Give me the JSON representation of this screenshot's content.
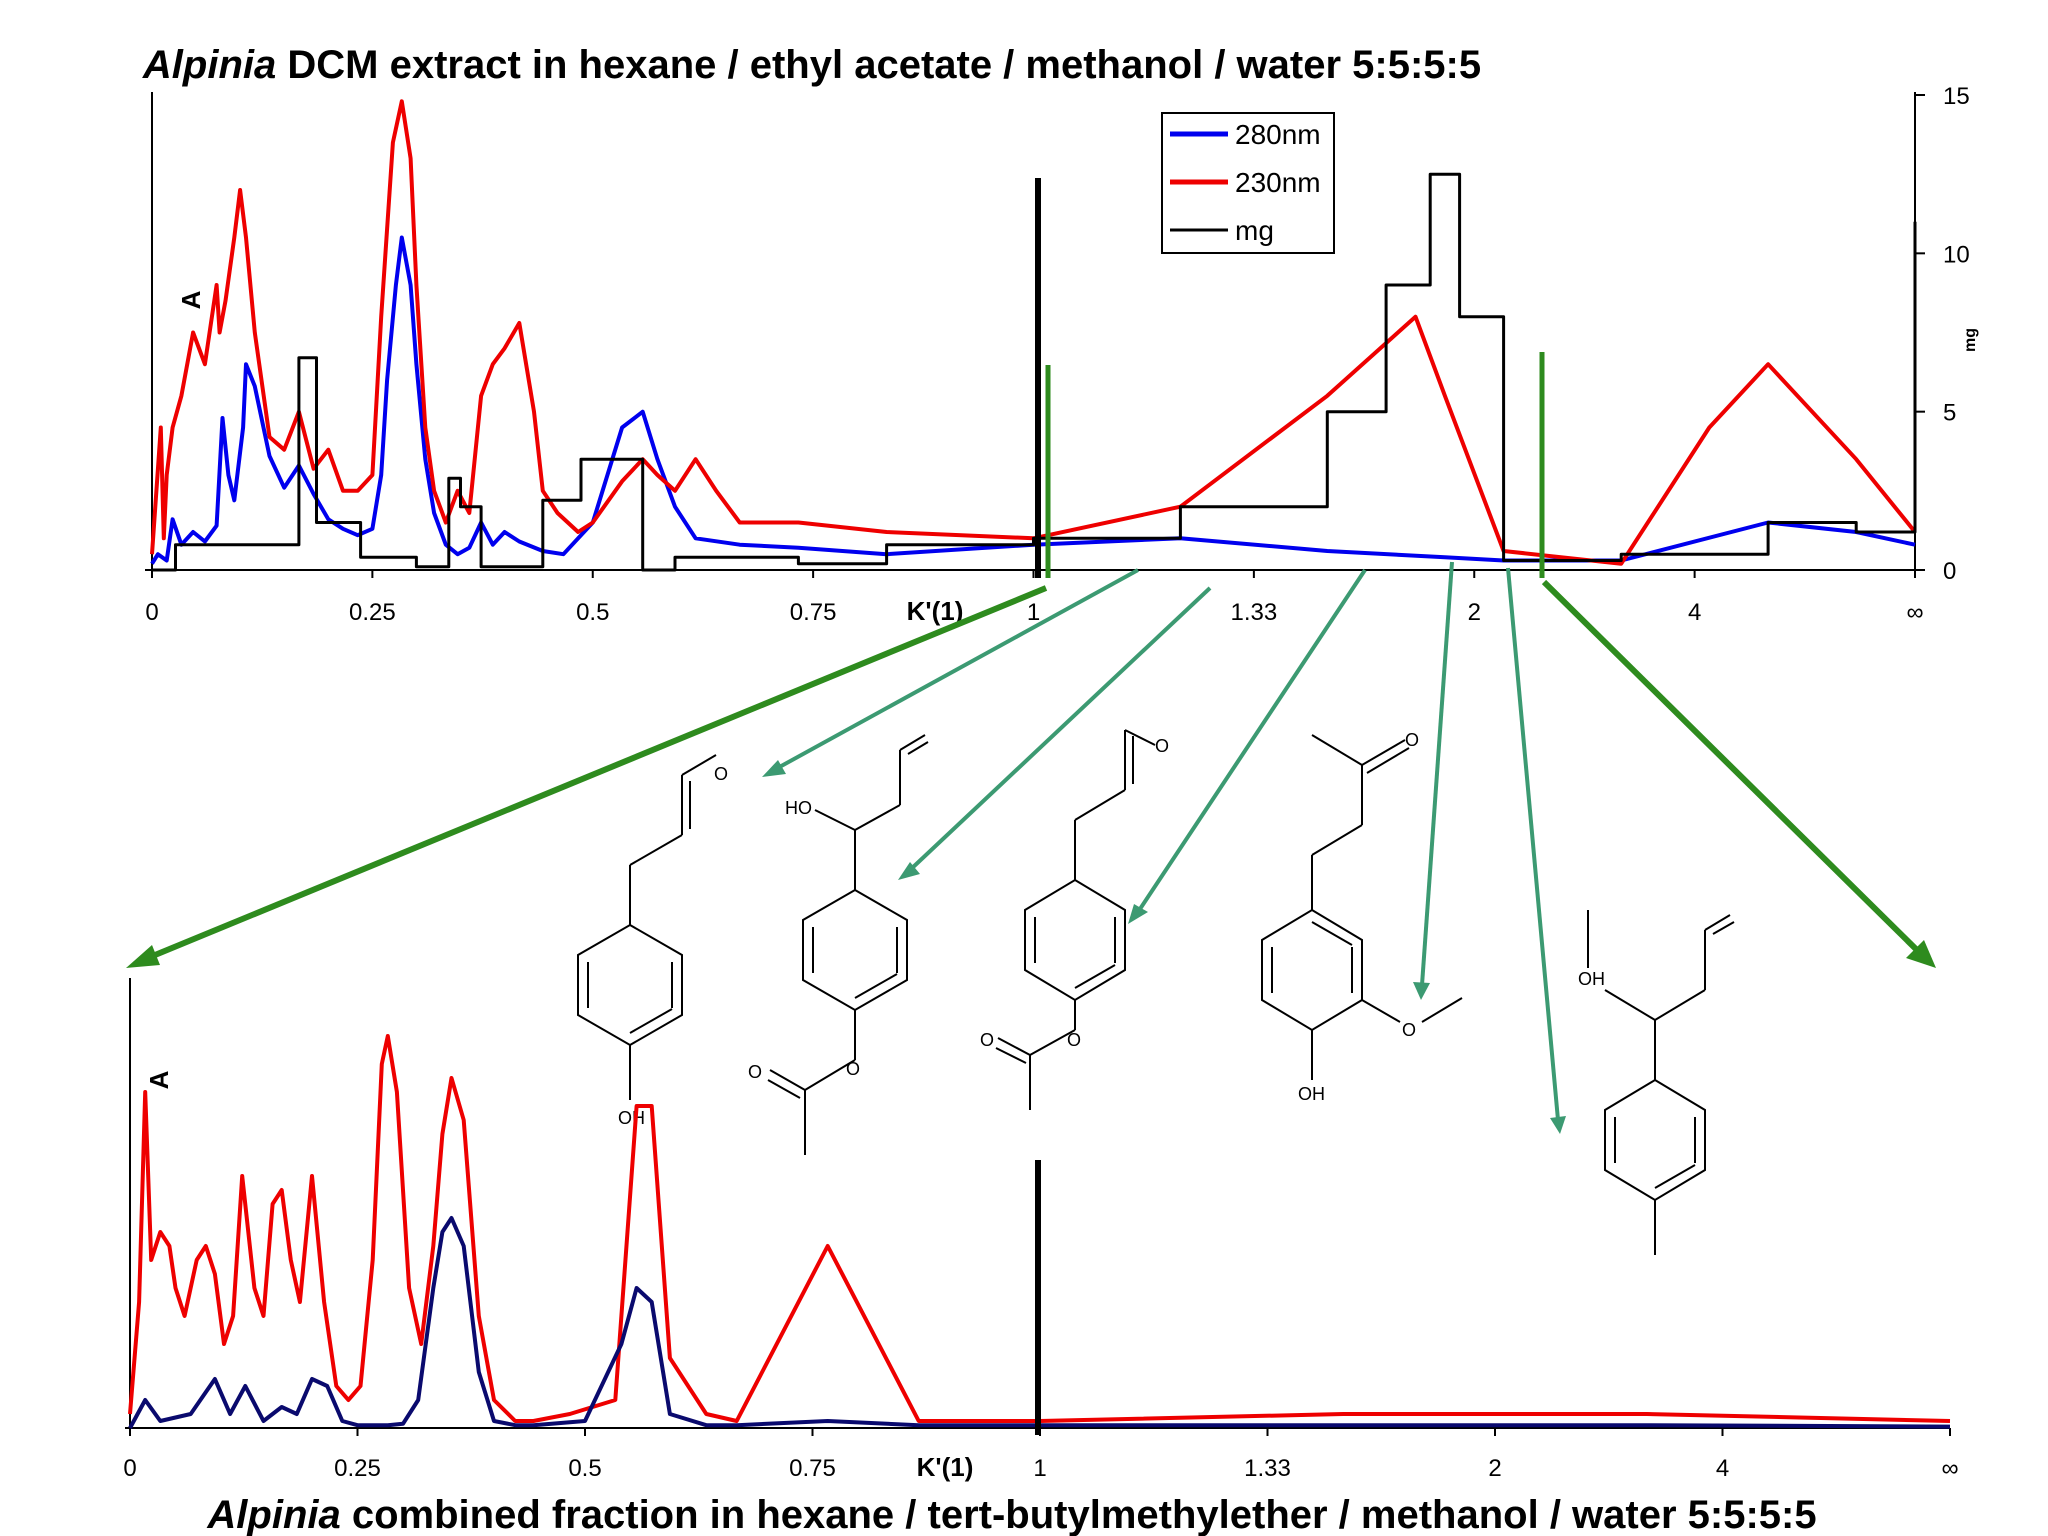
{
  "chart_data": [
    {
      "type": "line",
      "title_italic": "Alpinia",
      "title_rest": " DCM extract in hexane / ethyl acetate / methanol / water 5:5:5:5",
      "ylabel": "A",
      "y2label": "mg",
      "xlabel": "K'(1)",
      "x_ticks": [
        "0",
        "0.25",
        "0.5",
        "0.75",
        "1",
        "1.33",
        "2",
        "4",
        "∞"
      ],
      "y2_ticks": [
        0,
        5,
        10,
        15
      ],
      "y2lim": [
        0,
        15
      ],
      "grid": false,
      "legend": {
        "placement": "top-center",
        "entries": [
          "280nm",
          "230nm",
          "mg"
        ]
      },
      "series": [
        {
          "name": "280nm",
          "color": "#0000ee",
          "x": [
            0,
            0.02,
            0.05,
            0.07,
            0.1,
            0.14,
            0.18,
            0.22,
            0.24,
            0.26,
            0.28,
            0.31,
            0.32,
            0.35,
            0.4,
            0.45,
            0.5,
            0.55,
            0.6,
            0.65,
            0.7,
            0.75,
            0.78,
            0.8,
            0.83,
            0.85,
            0.88,
            0.9,
            0.93,
            0.96,
            1.0,
            1.04,
            1.08,
            1.12,
            1.16,
            1.2,
            1.25,
            1.33,
            1.4,
            1.5,
            1.6,
            1.67,
            1.72,
            1.78,
            1.85,
            2.0,
            2.2,
            2.5,
            3.0,
            3.5,
            4.0,
            4.4,
            4.6,
            5.0,
            5.5,
            5.8,
            6.0
          ],
          "y": [
            0.2,
            0.5,
            0.3,
            1.6,
            0.8,
            1.2,
            0.9,
            1.4,
            4.8,
            3.0,
            2.2,
            4.5,
            6.5,
            5.8,
            3.6,
            2.6,
            3.3,
            2.4,
            1.6,
            1.3,
            1.1,
            1.3,
            3.0,
            6.0,
            9.0,
            10.5,
            9.0,
            6.5,
            3.5,
            1.8,
            0.8,
            0.5,
            0.7,
            1.5,
            0.8,
            1.2,
            0.9,
            0.6,
            0.5,
            1.5,
            4.5,
            5.0,
            3.5,
            2.0,
            1.0,
            0.8,
            0.7,
            0.5,
            0.8,
            1.0,
            0.6,
            0.4,
            0.3,
            0.3,
            1.5,
            1.2,
            0.8
          ]
        },
        {
          "name": "230nm",
          "color": "#ee0000",
          "x": [
            0,
            0.03,
            0.04,
            0.05,
            0.07,
            0.1,
            0.14,
            0.18,
            0.22,
            0.23,
            0.25,
            0.28,
            0.3,
            0.32,
            0.35,
            0.4,
            0.45,
            0.5,
            0.55,
            0.6,
            0.65,
            0.7,
            0.75,
            0.78,
            0.82,
            0.85,
            0.88,
            0.9,
            0.93,
            0.96,
            1.0,
            1.04,
            1.08,
            1.12,
            1.16,
            1.2,
            1.25,
            1.3,
            1.33,
            1.38,
            1.45,
            1.5,
            1.6,
            1.67,
            1.72,
            1.78,
            1.85,
            1.92,
            2.0,
            2.2,
            2.5,
            3.0,
            3.5,
            4.0,
            4.3,
            4.4,
            4.6,
            5.0,
            5.3,
            5.5,
            5.8,
            6.0
          ],
          "y": [
            0.5,
            4.5,
            1.0,
            3.0,
            4.5,
            5.5,
            7.5,
            6.5,
            9.0,
            7.5,
            8.5,
            10.5,
            12.0,
            10.5,
            7.5,
            4.2,
            3.8,
            5.0,
            3.2,
            3.8,
            2.5,
            2.5,
            3.0,
            8.0,
            13.5,
            14.8,
            13.0,
            9.0,
            4.5,
            2.5,
            1.5,
            2.5,
            1.8,
            5.5,
            6.5,
            7.0,
            7.8,
            5.0,
            2.5,
            1.8,
            1.2,
            1.5,
            2.8,
            3.5,
            3.0,
            2.5,
            3.5,
            2.5,
            1.5,
            1.5,
            1.2,
            1.0,
            2.0,
            5.5,
            8.0,
            5.5,
            0.6,
            0.2,
            4.5,
            6.5,
            3.5,
            1.2
          ]
        },
        {
          "name": "mg",
          "color": "#000000",
          "step": true,
          "x": [
            0,
            0.08,
            0.12,
            0.33,
            0.5,
            0.56,
            0.71,
            0.9,
            1.01,
            1.05,
            1.12,
            1.2,
            1.33,
            1.46,
            1.67,
            1.78,
            2.0,
            2.2,
            2.5,
            3.0,
            3.5,
            4.0,
            4.2,
            4.35,
            4.45,
            4.6,
            5.0,
            5.5,
            5.8,
            6.0
          ],
          "y": [
            0,
            0.8,
            0.8,
            0.8,
            6.7,
            1.5,
            0.4,
            0.1,
            2.9,
            2.0,
            0.1,
            0.1,
            2.2,
            3.5,
            0.0,
            0.4,
            0.4,
            0.2,
            0.8,
            1.0,
            2.0,
            5.0,
            9.0,
            12.5,
            8.0,
            0.3,
            0.5,
            1.5,
            1.2,
            11.0
          ]
        }
      ]
    },
    {
      "type": "line",
      "title_italic": "Alpinia",
      "title_rest": " combined fraction in hexane / tert-butylmethylether / methanol / water 5:5:5:5",
      "ylabel": "A",
      "xlabel": "K'(1)",
      "x_ticks": [
        "0",
        "0.25",
        "0.5",
        "0.75",
        "1",
        "1.33",
        "2",
        "4",
        "∞"
      ],
      "grid": false,
      "series": [
        {
          "name": "230nm",
          "color": "#ee0000",
          "x": [
            0,
            0.03,
            0.05,
            0.07,
            0.1,
            0.13,
            0.15,
            0.18,
            0.22,
            0.25,
            0.28,
            0.31,
            0.34,
            0.37,
            0.41,
            0.44,
            0.47,
            0.5,
            0.53,
            0.56,
            0.6,
            0.64,
            0.68,
            0.72,
            0.76,
            0.8,
            0.83,
            0.85,
            0.88,
            0.92,
            0.96,
            1.0,
            1.03,
            1.06,
            1.1,
            1.15,
            1.2,
            1.27,
            1.33,
            1.45,
            1.6,
            1.67,
            1.72,
            1.78,
            1.9,
            2.0,
            2.3,
            2.6,
            3.0,
            4.0,
            5.0,
            6.0
          ],
          "y": [
            0.1,
            0.9,
            2.4,
            1.2,
            1.4,
            1.3,
            1.0,
            0.8,
            1.2,
            1.3,
            1.1,
            0.6,
            0.8,
            1.8,
            1.0,
            0.8,
            1.6,
            1.7,
            1.2,
            0.9,
            1.8,
            0.9,
            0.3,
            0.2,
            0.3,
            1.2,
            2.6,
            2.8,
            2.4,
            1.0,
            0.6,
            1.3,
            2.1,
            2.5,
            2.2,
            0.8,
            0.2,
            0.05,
            0.05,
            0.1,
            0.2,
            2.3,
            2.3,
            0.5,
            0.1,
            0.05,
            1.3,
            0.05,
            0.05,
            0.1,
            0.1,
            0.05
          ]
        },
        {
          "name": "280nm",
          "color": "#0a0a6e",
          "x": [
            0,
            0.05,
            0.1,
            0.2,
            0.28,
            0.33,
            0.38,
            0.44,
            0.5,
            0.55,
            0.6,
            0.65,
            0.7,
            0.75,
            0.8,
            0.85,
            0.9,
            0.95,
            1.0,
            1.03,
            1.06,
            1.1,
            1.15,
            1.2,
            1.27,
            1.33,
            1.5,
            1.62,
            1.67,
            1.72,
            1.78,
            1.9,
            2.0,
            2.3,
            2.6,
            3.0,
            4.0,
            5.0,
            6.0
          ],
          "y": [
            0.0,
            0.2,
            0.05,
            0.1,
            0.35,
            0.1,
            0.3,
            0.05,
            0.15,
            0.1,
            0.35,
            0.3,
            0.05,
            0.02,
            0.02,
            0.02,
            0.03,
            0.2,
            1.0,
            1.4,
            1.5,
            1.3,
            0.4,
            0.05,
            0.02,
            0.02,
            0.05,
            0.6,
            1.0,
            0.9,
            0.1,
            0.02,
            0.02,
            0.05,
            0.02,
            0.02,
            0.02,
            0.02,
            0.01
          ]
        }
      ]
    }
  ],
  "colors": {
    "marker_black": "#000000",
    "marker_green": "#2e8b1e",
    "pointer_green": "#3c9a72"
  },
  "structures": {
    "atom_labels": [
      "O",
      "OH",
      "HO",
      "O",
      "O",
      "O",
      "O",
      "O",
      "O",
      "OH",
      "O",
      "OH"
    ]
  }
}
